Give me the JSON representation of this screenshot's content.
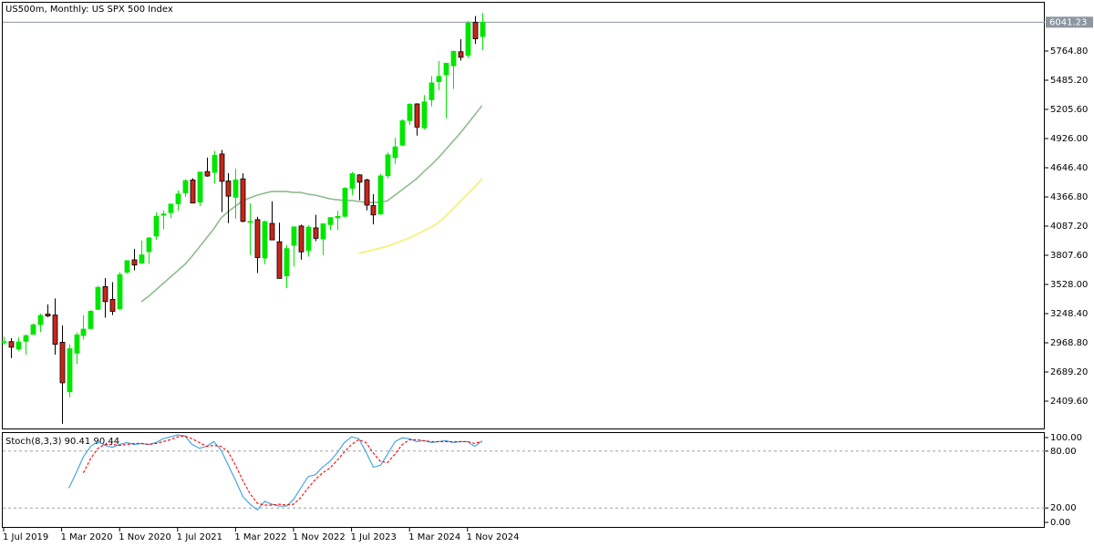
{
  "chart_data": [
    {
      "type": "candlestick",
      "title": "US500m, Monthly:  US SPX 500 Index",
      "categories": [
        "1 Jul 2019",
        null,
        null,
        null,
        null,
        null,
        null,
        null,
        "1 Mar 2020",
        null,
        null,
        null,
        null,
        null,
        null,
        null,
        "1 Nov 2020",
        null,
        null,
        null,
        null,
        null,
        null,
        null,
        "1 Jul 2021",
        null,
        null,
        null,
        null,
        null,
        null,
        null,
        "1 Mar 2022",
        null,
        null,
        null,
        null,
        null,
        null,
        null,
        "1 Nov 2022",
        null,
        null,
        null,
        null,
        null,
        null,
        null,
        "1 Jul 2023",
        null,
        null,
        null,
        null,
        null,
        null,
        null,
        "1 Mar 2024",
        null,
        null,
        null,
        null,
        null,
        null,
        null,
        "1 Nov 2024",
        null,
        null
      ],
      "open": [
        2971,
        2980,
        2909,
        2983,
        3050,
        3143,
        3244,
        3235,
        2974,
        2499,
        2869,
        3038,
        3105,
        3289,
        3507,
        3385,
        3296,
        3645,
        3764,
        3731,
        3842,
        3992,
        4191,
        4216,
        4301,
        4406,
        4529,
        4317,
        4610,
        4602,
        4778,
        4519,
        4363,
        4540,
        4131,
        4149,
        3781,
        4113,
        3937,
        3610,
        3902,
        4088,
        3853,
        4070,
        3964,
        4102,
        4166,
        4181,
        4450,
        4578,
        4530,
        4284,
        4202,
        4570,
        4743,
        4862,
        5098,
        5258,
        5029,
        5298,
        5471,
        5537,
        5623,
        5758,
        5723,
        6040,
        5904
      ],
      "high": [
        3027,
        3013,
        3021,
        3050,
        3154,
        3248,
        3337,
        3394,
        3136,
        2955,
        3068,
        3233,
        3280,
        3515,
        3588,
        3550,
        3646,
        3760,
        3870,
        3950,
        3983,
        4218,
        4238,
        4302,
        4429,
        4537,
        4546,
        4608,
        4743,
        4808,
        4818,
        4595,
        4637,
        4593,
        4307,
        4177,
        4141,
        4325,
        4120,
        3906,
        4080,
        4101,
        4095,
        4195,
        4110,
        4170,
        4231,
        4458,
        4607,
        4584,
        4541,
        4394,
        4587,
        4793,
        4932,
        5111,
        5265,
        5264,
        5342,
        5524,
        5669,
        5651,
        5768,
        5878,
        6053,
        6100,
        6128
      ],
      "low": [
        2952,
        2822,
        2892,
        2855,
        3050,
        3070,
        3214,
        2855,
        2192,
        2447,
        2766,
        2999,
        3101,
        3283,
        3209,
        3234,
        3279,
        3633,
        3663,
        3725,
        3723,
        3955,
        4056,
        4164,
        4233,
        4367,
        4306,
        4279,
        4560,
        4495,
        4222,
        4115,
        4157,
        4124,
        3811,
        3637,
        3721,
        3955,
        3585,
        3492,
        3699,
        3765,
        3795,
        3943,
        3809,
        4049,
        4048,
        4167,
        4385,
        4335,
        4238,
        4104,
        4197,
        4546,
        4683,
        4854,
        5057,
        4954,
        5012,
        5235,
        5390,
        5120,
        5402,
        5674,
        5697,
        5832,
        5774
      ],
      "close": [
        2980,
        2926,
        2977,
        3038,
        3141,
        3231,
        3226,
        2954,
        2585,
        2912,
        3044,
        3100,
        3271,
        3500,
        3363,
        3270,
        3622,
        3756,
        3714,
        3811,
        3973,
        4181,
        4204,
        4298,
        4395,
        4523,
        4308,
        4605,
        4567,
        4766,
        4516,
        4374,
        4530,
        4132,
        4132,
        3785,
        4130,
        3955,
        3586,
        3872,
        4080,
        3840,
        4077,
        3970,
        4109,
        4169,
        4180,
        4450,
        4589,
        4508,
        4288,
        4194,
        4568,
        4770,
        4846,
        5096,
        5254,
        5036,
        5278,
        5460,
        5522,
        5648,
        5762,
        5705,
        6032,
        5882,
        6041.23
      ],
      "up_color": "#00e600",
      "down_color": "#c8261a",
      "border_color": "#000000",
      "series": [
        {
          "color": "#8fbc8f",
          "values": [
            null,
            null,
            null,
            null,
            null,
            null,
            null,
            null,
            null,
            null,
            null,
            null,
            null,
            null,
            null,
            null,
            null,
            null,
            null,
            3362,
            3414,
            3476,
            3537,
            3598,
            3659,
            3720,
            3799,
            3886,
            3974,
            4061,
            4166,
            4227,
            4279,
            4332,
            4358,
            4384,
            4402,
            4419,
            4419,
            4419,
            4410,
            4410,
            4393,
            4384,
            4367,
            4349,
            4340,
            4332,
            4332,
            4323,
            4314,
            4314,
            4314,
            4332,
            4384,
            4437,
            4489,
            4542,
            4611,
            4673,
            4743,
            4821,
            4900,
            4978,
            5066,
            5153,
            5241
          ]
        },
        {
          "color": "#f5f06e",
          "values": [
            null,
            null,
            null,
            null,
            null,
            null,
            null,
            null,
            null,
            null,
            null,
            null,
            null,
            null,
            null,
            null,
            null,
            null,
            null,
            null,
            null,
            null,
            null,
            null,
            null,
            null,
            null,
            null,
            null,
            null,
            null,
            null,
            null,
            null,
            null,
            null,
            null,
            null,
            null,
            null,
            null,
            null,
            null,
            null,
            null,
            null,
            null,
            null,
            null,
            3825,
            3843,
            3860,
            3877,
            3895,
            3921,
            3947,
            3974,
            4009,
            4044,
            4078,
            4122,
            4183,
            4253,
            4323,
            4393,
            4463,
            4541
          ]
        }
      ],
      "last_price": 6041.23,
      "last_price_color": "#8c96a0",
      "ylim": [
        2138.7,
        6236.5
      ],
      "yticks": [
        {
          "value": 5764.8,
          "label": "5764.80"
        },
        {
          "value": 5485.2,
          "label": "5485.20"
        },
        {
          "value": 5205.6,
          "label": "5205.60"
        },
        {
          "value": 4926,
          "label": "4926.00"
        },
        {
          "value": 4646.4,
          "label": "4646.40"
        },
        {
          "value": 4366.8,
          "label": "4366.80"
        },
        {
          "value": 4087.2,
          "label": "4087.20"
        },
        {
          "value": 3807.6,
          "label": "3807.60"
        },
        {
          "value": 3528,
          "label": "3528.00"
        },
        {
          "value": 3248.4,
          "label": "3248.40"
        },
        {
          "value": 2968.8,
          "label": "2968.80"
        },
        {
          "value": 2689.2,
          "label": "2689.20"
        },
        {
          "value": 2409.6,
          "label": "2409.60"
        }
      ],
      "grid": false
    },
    {
      "type": "line",
      "title": "Stoch(8,3,3) 90.41 90.44",
      "series": [
        {
          "color": "#3aa0e0",
          "dashed": false,
          "values": [
            null,
            null,
            null,
            null,
            null,
            null,
            null,
            null,
            null,
            41,
            57,
            74,
            85,
            90,
            86,
            84,
            87,
            89,
            87,
            88,
            87,
            89,
            93,
            95,
            97,
            96,
            87,
            83,
            85,
            90,
            81,
            65,
            49,
            32,
            24,
            18,
            27,
            24,
            22,
            22,
            29,
            41,
            53,
            55,
            63,
            69,
            78,
            89,
            95,
            93,
            79,
            63,
            65,
            77,
            90,
            94,
            93,
            90,
            91,
            89,
            90,
            91,
            89,
            90,
            90,
            85,
            90.41
          ]
        },
        {
          "color": "#ff0000",
          "dashed": true,
          "values": [
            null,
            null,
            null,
            null,
            null,
            null,
            null,
            null,
            null,
            null,
            null,
            57,
            72,
            83,
            87,
            87,
            86,
            87,
            88,
            88,
            87,
            88,
            90,
            92,
            95,
            96,
            93,
            89,
            85,
            86,
            85,
            79,
            65,
            49,
            35,
            25,
            23,
            23,
            24,
            23,
            24,
            31,
            41,
            50,
            57,
            62,
            70,
            79,
            87,
            92,
            89,
            78,
            69,
            68,
            77,
            87,
            92,
            92,
            91,
            90,
            90,
            90,
            90,
            90,
            90,
            88,
            90.44
          ]
        }
      ],
      "ylim": [
        0,
        100
      ],
      "yticks": [
        {
          "value": 100,
          "label": "100.00"
        },
        {
          "value": 80,
          "label": "80.00"
        },
        {
          "value": 20,
          "label": "20.00"
        },
        {
          "value": 0,
          "label": "0.00"
        }
      ],
      "levels": [
        80,
        20
      ]
    }
  ]
}
